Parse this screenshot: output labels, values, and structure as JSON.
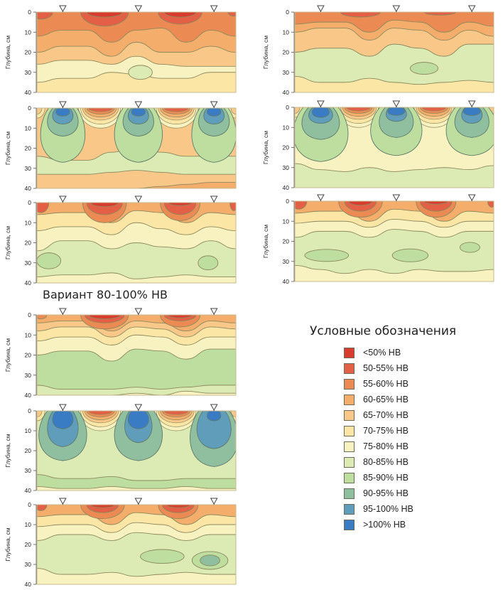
{
  "variant_title": "Вариант 80-100% НВ",
  "legend": {
    "title": "Условные обозначения",
    "items": [
      {
        "label": "<50% НВ",
        "color": "#d73c2e"
      },
      {
        "label": "50-55% НВ",
        "color": "#e35f45"
      },
      {
        "label": "55-60% НВ",
        "color": "#ec8a54"
      },
      {
        "label": "60-65% НВ",
        "color": "#f4ad6a"
      },
      {
        "label": "65-70% НВ",
        "color": "#f9c889"
      },
      {
        "label": "70-75% НВ",
        "color": "#fce6a6"
      },
      {
        "label": "75-80% НВ",
        "color": "#f8f2c0"
      },
      {
        "label": "80-85% НВ",
        "color": "#dceab3"
      },
      {
        "label": "85-90% НВ",
        "color": "#bedea0"
      },
      {
        "label": "90-95% НВ",
        "color": "#8fbf9f"
      },
      {
        "label": "95-100% НВ",
        "color": "#5f9dbb"
      },
      {
        "label": ">100% НВ",
        "color": "#3a7cc4"
      }
    ]
  },
  "chart_data": {
    "type": "heatmap",
    "description": "Soil moisture contour profiles (% of field capacity, НВ) by depth between three drip emitters",
    "ylabel": "Глубина, см",
    "yticks": [
      "0",
      "10",
      "20",
      "30",
      "40"
    ],
    "ylim": [
      0,
      40
    ],
    "emitter_marker": "▽",
    "emitter_positions": [
      0.13,
      0.51,
      0.89
    ],
    "panels": [
      {
        "id": "left-1",
        "column": "left",
        "row": 1,
        "state": "before irrigation",
        "bands": [
          {
            "level": 2,
            "top": [
              0,
              0,
              0,
              0,
              0,
              0,
              0,
              0,
              0
            ],
            "surface_pockets": [
              {
                "x": 0.28,
                "depth": 2.5
              },
              {
                "x": 0.68,
                "depth": 2.5
              }
            ]
          },
          {
            "level": 1,
            "pockets": [
              {
                "x": 0.02,
                "depth": 3
              },
              {
                "x": 0.33,
                "depth": 7
              },
              {
                "x": 0.71,
                "depth": 6
              },
              {
                "x": 0.99,
                "depth": 2
              }
            ]
          },
          {
            "level": 2,
            "boundary": [
              12,
              9,
              9,
              15,
              9,
              8,
              15,
              9,
              12
            ]
          },
          {
            "level": 3,
            "boundary": [
              20,
              17,
              17,
              22,
              15,
              20,
              20,
              17,
              20
            ]
          },
          {
            "level": 4,
            "boundary": [
              26,
              24,
              24,
              26,
              22,
              26,
              27,
              27,
              27
            ]
          },
          {
            "level": 5,
            "boundary": [
              35,
              33,
              33,
              30,
              31,
              33,
              33,
              30,
              30
            ]
          }
        ],
        "blobs": [
          {
            "x": 0.52,
            "depth": 30,
            "level": 6
          }
        ]
      },
      {
        "id": "right-1",
        "column": "right",
        "row": 1,
        "state": "before irrigation",
        "blobs": [
          {
            "x": 0.65,
            "depth": 28,
            "level": 7
          }
        ]
      },
      {
        "id": "left-2",
        "column": "left",
        "row": 2,
        "state": "after irrigation",
        "max_level": 10
      },
      {
        "id": "right-2",
        "column": "right",
        "row": 2,
        "state": "after irrigation",
        "max_level": 10
      },
      {
        "id": "left-3",
        "column": "left",
        "row": 3,
        "state": "after redistribution",
        "blobs": [
          {
            "x": 0.05,
            "depth": 29,
            "level": 8
          },
          {
            "x": 0.87,
            "depth": 30,
            "level": 8
          }
        ]
      },
      {
        "id": "right-3",
        "column": "right",
        "row": 3,
        "state": "after redistribution",
        "blobs": [
          {
            "x": 0.16,
            "depth": 27,
            "level": 8
          },
          {
            "x": 0.58,
            "depth": 27,
            "level": 8
          },
          {
            "x": 0.88,
            "depth": 23,
            "level": 8
          }
        ]
      },
      {
        "id": "variant-1",
        "column": "variant",
        "row": 1,
        "state": "before irrigation"
      },
      {
        "id": "variant-2",
        "column": "variant",
        "row": 2,
        "state": "after irrigation",
        "max_level": 11
      },
      {
        "id": "variant-3",
        "column": "variant",
        "row": 3,
        "state": "after redistribution",
        "blobs": [
          {
            "x": 0.63,
            "depth": 26,
            "level": 8
          },
          {
            "x": 0.88,
            "depth": 28,
            "level": 9
          }
        ]
      }
    ]
  }
}
